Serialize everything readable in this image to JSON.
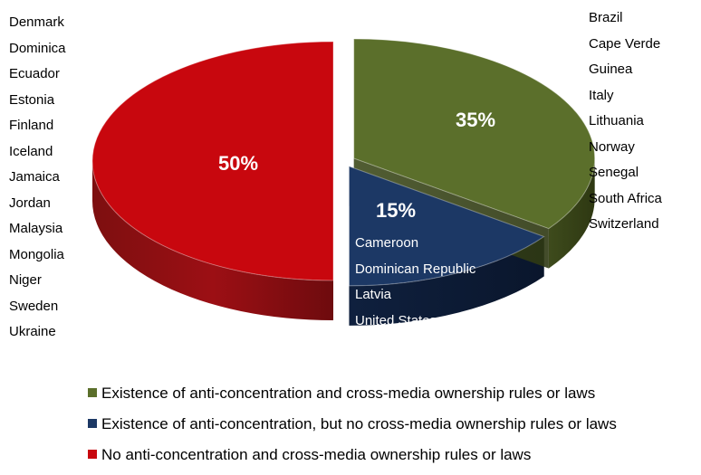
{
  "chart_data": {
    "type": "pie",
    "title": "",
    "slices": [
      {
        "label": "Existence of anti-concentration and cross-media ownership rules or laws",
        "value": 35,
        "value_label": "35%",
        "color": "#5b6f2b",
        "countries": [
          "Brazil",
          "Cape Verde",
          "Guinea",
          "Italy",
          "Lithuania",
          "Norway",
          "Senegal",
          "South Africa",
          "Switzerland"
        ]
      },
      {
        "label": "Existence of anti-concentration, but no cross-media ownership rules or laws",
        "value": 15,
        "value_label": "15%",
        "color": "#1c3865",
        "countries": [
          "Cameroon",
          "Dominican Republic",
          "Latvia",
          "United States"
        ]
      },
      {
        "label": "No anti-concentration and cross-media ownership rules or laws",
        "value": 50,
        "value_label": "50%",
        "color": "#c8070e",
        "countries": [
          "Denmark",
          "Dominica",
          "Ecuador",
          "Estonia",
          "Finland",
          "Iceland",
          "Jamaica",
          "Jordan",
          "Malaysia",
          "Mongolia",
          "Niger",
          "Sweden",
          "Ukraine"
        ]
      }
    ],
    "legend_position": "bottom",
    "style": "3d-exploded"
  }
}
